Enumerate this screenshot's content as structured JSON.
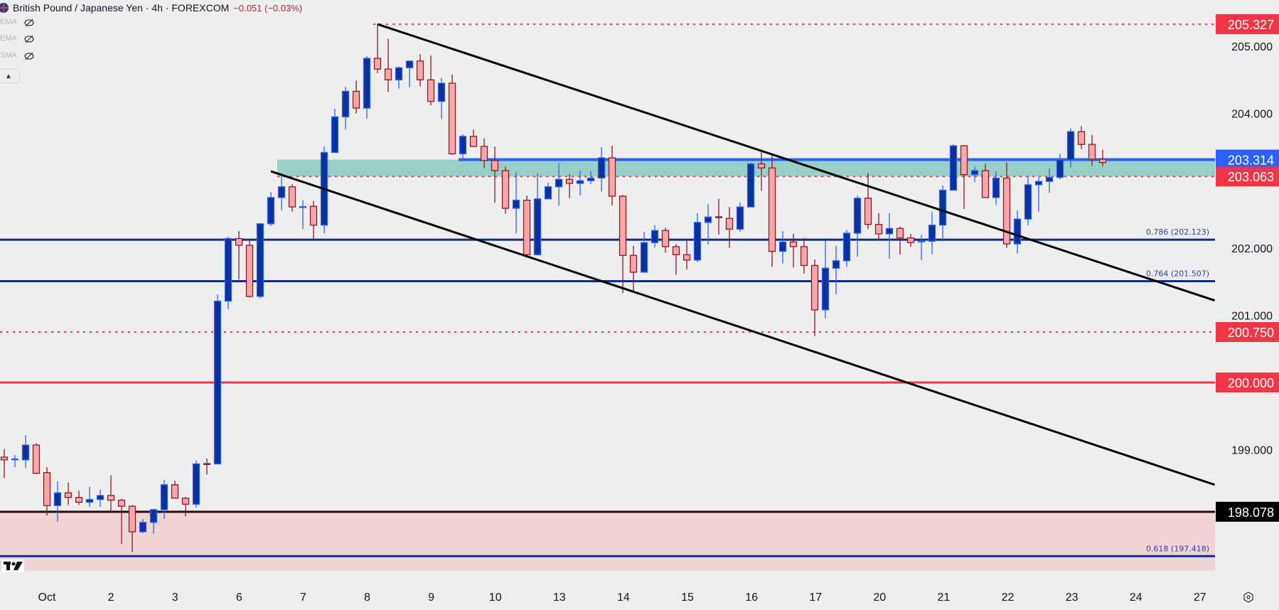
{
  "header": {
    "symbol": "British Pound / Japanese Yen · 4h · FOREXCOM",
    "change": "−0.051 (−0.03%)",
    "indicators": [
      {
        "label": "EMA"
      },
      {
        "label": "EMA"
      },
      {
        "label": "SMA"
      }
    ]
  },
  "colors": {
    "bull_body": "#0c3199",
    "bull_border": "#2962ff",
    "bear_body": "#f7a6aa",
    "bear_border": "#8e1b25",
    "red": "#f23645",
    "blue": "#2962ff",
    "navy": "#0c2d96",
    "teal_zone": "#98cfc6",
    "pink_zone": "#f0d4d6",
    "background": "#eeeeee"
  },
  "chart_data": {
    "type": "candlestick",
    "title": "",
    "timeframe": "4h",
    "ylim": [
      197.2,
      205.7
    ],
    "y_ticks": [
      "205.000",
      "204.000",
      "202.000",
      "201.000",
      "199.000"
    ],
    "x_tick_labels": [
      "Oct",
      "2",
      "3",
      "6",
      "7",
      "8",
      "9",
      "10",
      "13",
      "14",
      "15",
      "16",
      "17",
      "20",
      "21",
      "22",
      "23",
      "24",
      "27"
    ],
    "ohlc_fields": [
      "open",
      "high",
      "low",
      "close"
    ],
    "candles": [
      [
        198.89,
        199.01,
        198.58,
        198.85
      ],
      [
        198.85,
        198.92,
        198.74,
        198.86
      ],
      [
        198.85,
        199.22,
        198.73,
        199.07
      ],
      [
        199.07,
        199.1,
        198.64,
        198.65
      ],
      [
        198.66,
        198.74,
        198.02,
        198.17
      ],
      [
        198.17,
        198.53,
        197.93,
        198.36
      ],
      [
        198.36,
        198.51,
        198.18,
        198.29
      ],
      [
        198.29,
        198.39,
        198.18,
        198.22
      ],
      [
        198.22,
        198.45,
        198.15,
        198.26
      ],
      [
        198.26,
        198.41,
        198.15,
        198.32
      ],
      [
        198.32,
        198.62,
        198.09,
        198.25
      ],
      [
        198.25,
        198.27,
        197.6,
        198.16
      ],
      [
        198.16,
        198.18,
        197.48,
        197.78
      ],
      [
        197.78,
        197.97,
        197.76,
        197.92
      ],
      [
        197.92,
        198.12,
        197.75,
        198.11
      ],
      [
        198.11,
        198.55,
        197.97,
        198.48
      ],
      [
        198.48,
        198.54,
        198.28,
        198.28
      ],
      [
        198.28,
        198.3,
        198.01,
        198.19
      ],
      [
        198.19,
        198.84,
        198.14,
        198.79
      ],
      [
        198.79,
        198.87,
        198.63,
        198.78
      ],
      [
        198.79,
        201.31,
        198.79,
        201.21
      ],
      [
        201.21,
        202.17,
        201.09,
        202.14
      ],
      [
        202.14,
        202.25,
        201.53,
        202.04
      ],
      [
        202.04,
        202.12,
        201.26,
        201.28
      ],
      [
        201.28,
        202.36,
        201.25,
        202.36
      ],
      [
        202.36,
        202.83,
        202.33,
        202.75
      ],
      [
        202.75,
        203.07,
        202.56,
        202.91
      ],
      [
        202.91,
        202.95,
        202.54,
        202.61
      ],
      [
        202.6,
        202.71,
        202.28,
        202.61
      ],
      [
        202.62,
        202.7,
        202.14,
        202.34
      ],
      [
        202.34,
        203.51,
        202.22,
        203.42
      ],
      [
        203.42,
        204.07,
        203.42,
        203.95
      ],
      [
        203.95,
        204.4,
        203.76,
        204.33
      ],
      [
        204.33,
        204.49,
        204.0,
        204.08
      ],
      [
        204.08,
        204.85,
        203.92,
        204.82
      ],
      [
        204.82,
        205.327,
        204.6,
        204.66
      ],
      [
        204.66,
        205.11,
        204.32,
        204.5
      ],
      [
        204.5,
        204.7,
        204.37,
        204.68
      ],
      [
        204.68,
        204.78,
        204.39,
        204.78
      ],
      [
        204.78,
        204.88,
        204.4,
        204.5
      ],
      [
        204.5,
        204.86,
        204.12,
        204.18
      ],
      [
        204.18,
        204.53,
        203.92,
        204.45
      ],
      [
        204.45,
        204.58,
        203.38,
        203.4
      ],
      [
        203.4,
        203.69,
        203.33,
        203.66
      ],
      [
        203.66,
        203.76,
        203.51,
        203.51
      ],
      [
        203.51,
        203.63,
        203.19,
        203.3
      ],
      [
        203.3,
        203.51,
        202.67,
        203.15
      ],
      [
        203.15,
        203.21,
        202.51,
        202.59
      ],
      [
        202.59,
        203.13,
        202.22,
        202.71
      ],
      [
        202.71,
        202.78,
        201.87,
        201.9
      ],
      [
        201.9,
        203.11,
        201.9,
        202.73
      ],
      [
        202.73,
        202.97,
        202.73,
        202.91
      ],
      [
        202.91,
        203.26,
        202.63,
        203.02
      ],
      [
        203.02,
        203.1,
        202.74,
        202.96
      ],
      [
        202.96,
        203.15,
        202.78,
        203.0
      ],
      [
        203.0,
        203.14,
        202.95,
        203.04
      ],
      [
        203.04,
        203.5,
        202.84,
        203.34
      ],
      [
        203.34,
        203.52,
        202.63,
        202.77
      ],
      [
        202.77,
        202.79,
        201.33,
        201.89
      ],
      [
        201.89,
        202.03,
        201.34,
        201.64
      ],
      [
        201.64,
        202.24,
        201.64,
        202.08
      ],
      [
        202.08,
        202.34,
        202.01,
        202.26
      ],
      [
        202.26,
        202.3,
        201.93,
        202.02
      ],
      [
        202.02,
        202.06,
        201.6,
        201.9
      ],
      [
        201.9,
        202.12,
        201.68,
        201.82
      ],
      [
        201.82,
        202.52,
        201.79,
        202.38
      ],
      [
        202.38,
        202.65,
        202.05,
        202.46
      ],
      [
        202.46,
        202.73,
        202.2,
        202.44
      ],
      [
        202.44,
        202.61,
        202.0,
        202.28
      ],
      [
        202.28,
        202.68,
        202.24,
        202.61
      ],
      [
        202.61,
        203.27,
        202.61,
        203.25
      ],
      [
        203.25,
        203.45,
        202.85,
        203.19
      ],
      [
        203.19,
        203.38,
        201.72,
        201.95
      ],
      [
        201.95,
        202.25,
        201.77,
        202.09
      ],
      [
        202.09,
        202.21,
        201.71,
        202.02
      ],
      [
        202.02,
        202.15,
        201.62,
        201.74
      ],
      [
        201.74,
        201.83,
        200.69,
        201.08
      ],
      [
        201.08,
        202.11,
        200.95,
        201.7
      ],
      [
        201.7,
        202.03,
        201.31,
        201.81
      ],
      [
        201.81,
        202.27,
        201.72,
        202.22
      ],
      [
        202.22,
        202.78,
        201.87,
        202.74
      ],
      [
        202.74,
        203.12,
        202.28,
        202.35
      ],
      [
        202.35,
        202.52,
        202.11,
        202.21
      ],
      [
        202.21,
        202.52,
        201.84,
        202.29
      ],
      [
        202.29,
        202.32,
        201.9,
        202.15
      ],
      [
        202.15,
        202.21,
        202.02,
        202.08
      ],
      [
        202.08,
        202.2,
        201.82,
        202.1
      ],
      [
        202.1,
        202.54,
        201.91,
        202.34
      ],
      [
        202.34,
        202.93,
        202.1,
        202.86
      ],
      [
        202.86,
        203.54,
        202.86,
        203.52
      ],
      [
        203.52,
        203.53,
        202.58,
        203.09
      ],
      [
        203.09,
        203.21,
        202.98,
        203.15
      ],
      [
        203.15,
        203.25,
        202.75,
        202.75
      ],
      [
        202.75,
        203.14,
        202.64,
        203.04
      ],
      [
        203.04,
        203.27,
        202.0,
        202.06
      ],
      [
        202.06,
        202.56,
        201.92,
        202.43
      ],
      [
        202.43,
        203.07,
        202.34,
        202.94
      ],
      [
        202.94,
        203.05,
        202.54,
        202.99
      ],
      [
        202.99,
        203.18,
        202.82,
        203.05
      ],
      [
        203.05,
        203.4,
        203.02,
        203.31
      ],
      [
        203.31,
        203.78,
        203.2,
        203.73
      ],
      [
        203.73,
        203.81,
        203.47,
        203.54
      ],
      [
        203.54,
        203.68,
        203.22,
        203.32
      ],
      [
        203.32,
        203.46,
        203.21,
        203.27
      ]
    ],
    "horizontal_levels": [
      {
        "price": 205.327,
        "label": "205.327",
        "style": "dotted",
        "color": "#f23645",
        "from_bar": 35
      },
      {
        "price": 203.314,
        "label": "203.314",
        "style": "solid",
        "color": "#2962ff",
        "from_bar": 43
      },
      {
        "price": 203.063,
        "label": "203.063",
        "style": "dotted",
        "color": "#f23645",
        "from_bar": 26
      },
      {
        "price": 202.123,
        "label": "0.786 (202.123)",
        "style": "solid",
        "color": "#0c2d96",
        "from_bar": -1
      },
      {
        "price": 201.507,
        "label": "0.764 (201.507)",
        "style": "solid",
        "color": "#0c2d96",
        "from_bar": -1
      },
      {
        "price": 200.75,
        "label": "200.750",
        "style": "dotted",
        "color": "#f23645",
        "from_bar": -1
      },
      {
        "price": 200.0,
        "label": "200.000",
        "style": "solid",
        "color": "#f23645",
        "from_bar": -1
      },
      {
        "price": 198.078,
        "label": "198.078",
        "style": "solid",
        "color": "#2a0a0a",
        "from_bar": -1
      },
      {
        "price": 197.418,
        "label": "0.618 (197.418)",
        "style": "solid",
        "color": "#0c2d96",
        "from_bar": -1
      }
    ],
    "zones": [
      {
        "from_price": 203.063,
        "to_price": 203.314,
        "color": "#98cfc6",
        "from_bar": 26
      },
      {
        "from_price": 197.2,
        "to_price": 198.078,
        "color": "#f0d4d6",
        "from_bar": -1
      }
    ],
    "price_tags": [
      {
        "label": "205.327",
        "price": 205.327,
        "bg": "#f23645",
        "fg": "#ffffff"
      },
      {
        "label": "203.314",
        "price": 203.314,
        "bg": "#2962ff",
        "fg": "#ffffff"
      },
      {
        "label": "203.063",
        "price": 203.063,
        "bg": "#f23645",
        "fg": "#ffffff"
      },
      {
        "label": "200.750",
        "price": 200.75,
        "bg": "#f23645",
        "fg": "#ffffff"
      },
      {
        "label": "200.000",
        "price": 200.0,
        "bg": "#f23645",
        "fg": "#ffffff"
      },
      {
        "label": "198.078",
        "price": 198.078,
        "bg": "#000000",
        "fg": "#ffffff"
      }
    ],
    "trendlines": [
      {
        "from": {
          "bar": 35,
          "price": 205.327
        },
        "to": {
          "bar": 113.5,
          "price": 201.22
        }
      },
      {
        "from": {
          "bar": 25,
          "price": 203.14
        },
        "to": {
          "bar": 113.5,
          "price": 198.48
        }
      }
    ]
  }
}
